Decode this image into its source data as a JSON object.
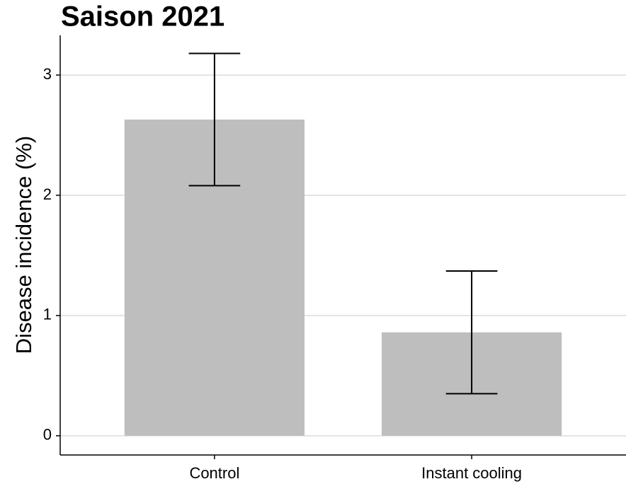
{
  "chart_data": {
    "type": "bar",
    "title": "Saison 2021",
    "y_label": "Disease incidence (%)",
    "categories": [
      "Control",
      "Instant cooling"
    ],
    "values": [
      2.63,
      0.86
    ],
    "errors": [
      0.55,
      0.51
    ],
    "color": "#bebebe",
    "ylim": [
      -0.16,
      3.33
    ],
    "yticks": [
      0,
      1,
      2,
      3
    ],
    "grid": true
  }
}
